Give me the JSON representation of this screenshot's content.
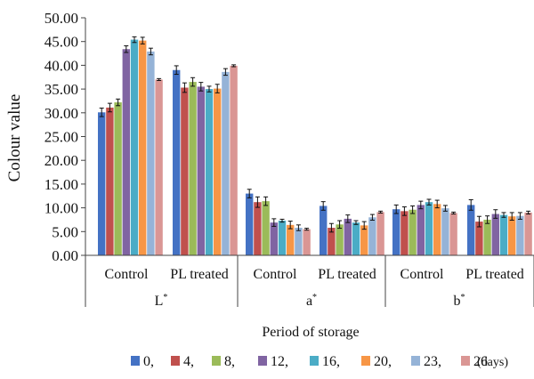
{
  "chart_data": {
    "type": "bar",
    "ylabel": "Colour value",
    "xlabel": "Period of storage",
    "ylim": [
      0,
      50
    ],
    "yticks": [
      "0.00",
      "5.00",
      "10.00",
      "15.00",
      "20.00",
      "25.00",
      "30.00",
      "35.00",
      "40.00",
      "45.00",
      "50.00"
    ],
    "groups": [
      {
        "parameter": "L",
        "parameter_sup": "*",
        "treatments": [
          "Control",
          "PL treated"
        ]
      },
      {
        "parameter": "a",
        "parameter_sup": "*",
        "treatments": [
          "Control",
          "PL treated"
        ]
      },
      {
        "parameter": "b",
        "parameter_sup": "*",
        "treatments": [
          "Control",
          "PL treated"
        ]
      }
    ],
    "legend": {
      "position": "bottom",
      "suffix": "(days)",
      "items": [
        "0,",
        "4,",
        "8,",
        "12,",
        "16,",
        "20,",
        "23,",
        "26"
      ]
    },
    "series": [
      {
        "name": "0",
        "color": "#4472C4",
        "values": [
          30.1,
          39.0,
          13.0,
          10.4,
          9.7,
          10.6
        ],
        "errors": [
          0.9,
          0.9,
          0.9,
          0.9,
          0.9,
          1.1
        ]
      },
      {
        "name": "4",
        "color": "#C0504D",
        "values": [
          31.1,
          35.3,
          11.2,
          5.8,
          9.3,
          7.1
        ],
        "errors": [
          0.9,
          1.0,
          1.1,
          0.9,
          0.9,
          1.1
        ]
      },
      {
        "name": "8",
        "color": "#9BBB59",
        "values": [
          32.2,
          36.5,
          11.4,
          6.5,
          9.6,
          7.5
        ],
        "errors": [
          0.7,
          0.9,
          0.9,
          0.8,
          0.8,
          0.8
        ]
      },
      {
        "name": "12",
        "color": "#8064A2",
        "values": [
          43.4,
          35.5,
          6.9,
          7.7,
          10.6,
          8.7
        ],
        "errors": [
          0.7,
          0.9,
          0.8,
          0.8,
          0.8,
          0.9
        ]
      },
      {
        "name": "16",
        "color": "#4BACC6",
        "values": [
          45.4,
          35.0,
          7.3,
          6.9,
          11.2,
          8.5
        ],
        "errors": [
          0.6,
          0.6,
          0.3,
          0.4,
          0.6,
          0.5
        ]
      },
      {
        "name": "20",
        "color": "#F79646",
        "values": [
          45.2,
          35.1,
          6.4,
          6.3,
          10.8,
          8.2
        ],
        "errors": [
          0.7,
          0.9,
          0.8,
          0.8,
          0.8,
          0.8
        ]
      },
      {
        "name": "23",
        "color": "#95B3D7",
        "values": [
          42.9,
          38.6,
          5.8,
          8.0,
          9.9,
          8.3
        ],
        "errors": [
          0.7,
          0.7,
          0.6,
          0.6,
          0.6,
          0.7
        ]
      },
      {
        "name": "26",
        "color": "#DA9694",
        "values": [
          37.0,
          39.9,
          5.5,
          9.1,
          8.9,
          9.0
        ],
        "errors": [
          0.2,
          0.2,
          0.2,
          0.2,
          0.2,
          0.3
        ]
      }
    ]
  }
}
